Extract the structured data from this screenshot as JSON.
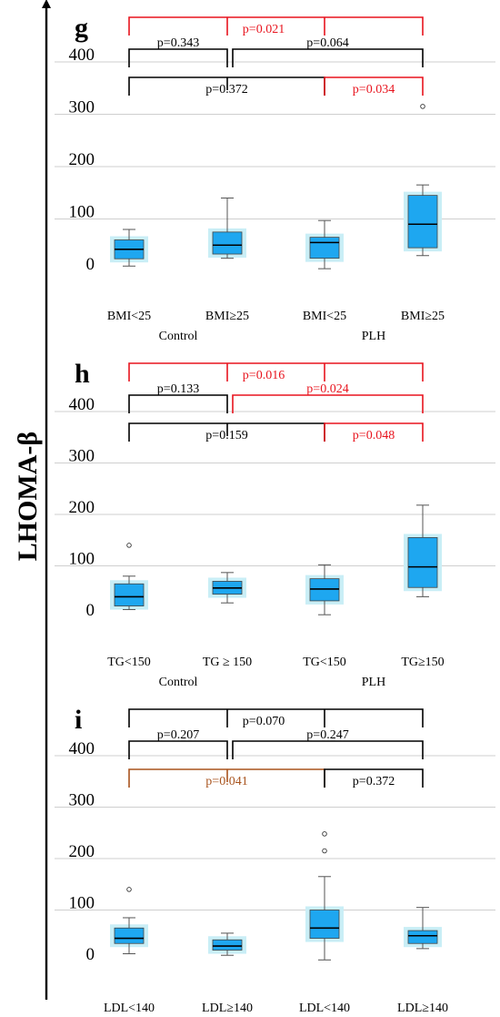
{
  "figure": {
    "ylabel": "LHOMA-β",
    "colors": {
      "box": "#1ea7f0",
      "halo": "#c9eef6",
      "black": "#000000",
      "red": "#e8141e",
      "brown": "#a8531d",
      "grid": "#bfbfbf"
    }
  },
  "chart_data": [
    {
      "type": "box",
      "panel": "g",
      "y_ticks": [
        0,
        100,
        200,
        300,
        400
      ],
      "ylim": [
        0,
        400
      ],
      "grid": true,
      "categories": [
        "BMI<25",
        "BMI≥25",
        "BMI<25",
        "BMI≥25"
      ],
      "groups": [
        {
          "label": "Control",
          "span": [
            0,
            1
          ]
        },
        {
          "label": "PLH",
          "span": [
            2,
            3
          ]
        }
      ],
      "boxes": [
        {
          "min": 10,
          "q1": 24,
          "median": 42,
          "q3": 60,
          "max": 80,
          "outliers": []
        },
        {
          "min": 25,
          "q1": 33,
          "median": 50,
          "q3": 75,
          "max": 140,
          "outliers": []
        },
        {
          "min": 5,
          "q1": 25,
          "median": 55,
          "q3": 65,
          "max": 97,
          "outliers": []
        },
        {
          "min": 30,
          "q1": 45,
          "median": 90,
          "q3": 145,
          "max": 165,
          "outliers": [
            315
          ]
        }
      ],
      "comparisons": [
        {
          "from": 0,
          "to": 3,
          "label": "p=0.021",
          "color": "red"
        },
        {
          "from": 0,
          "to": 1,
          "label": "p=0.343",
          "color": "black"
        },
        {
          "from": 1,
          "to": 3,
          "label": "p=0.064",
          "color": "black"
        },
        {
          "from": 0,
          "to": 2,
          "label": "p=0.372",
          "color": "black"
        },
        {
          "from": 2,
          "to": 3,
          "label": "p=0.034",
          "color": "red"
        }
      ]
    },
    {
      "type": "box",
      "panel": "h",
      "y_ticks": [
        0,
        100,
        200,
        300,
        400
      ],
      "ylim": [
        0,
        400
      ],
      "grid": true,
      "categories": [
        "TG<150",
        "TG ≥ 150",
        "TG<150",
        "TG≥150"
      ],
      "groups": [
        {
          "label": "Control",
          "span": [
            0,
            1
          ]
        },
        {
          "label": "PLH",
          "span": [
            2,
            3
          ]
        }
      ],
      "boxes": [
        {
          "min": 15,
          "q1": 22,
          "median": 40,
          "q3": 65,
          "max": 80,
          "outliers": [
            140
          ]
        },
        {
          "min": 28,
          "q1": 45,
          "median": 57,
          "q3": 70,
          "max": 87,
          "outliers": []
        },
        {
          "min": 5,
          "q1": 32,
          "median": 55,
          "q3": 75,
          "max": 102,
          "outliers": []
        },
        {
          "min": 40,
          "q1": 58,
          "median": 98,
          "q3": 155,
          "max": 218,
          "outliers": []
        }
      ],
      "comparisons": [
        {
          "from": 0,
          "to": 3,
          "label": "p=0.016",
          "color": "red"
        },
        {
          "from": 0,
          "to": 1,
          "label": "p=0.133",
          "color": "black"
        },
        {
          "from": 1,
          "to": 3,
          "label": "p=0.024",
          "color": "red"
        },
        {
          "from": 0,
          "to": 2,
          "label": "p=0.159",
          "color": "black"
        },
        {
          "from": 2,
          "to": 3,
          "label": "p=0.048",
          "color": "red"
        }
      ]
    },
    {
      "type": "box",
      "panel": "i",
      "y_ticks": [
        0,
        100,
        200,
        300,
        400
      ],
      "ylim": [
        0,
        400
      ],
      "grid": true,
      "categories": [
        "LDL<140",
        "LDL≥140",
        "LDL<140",
        "LDL≥140"
      ],
      "groups": [
        {
          "label": "Control",
          "span": [
            0,
            1
          ]
        },
        {
          "label": "PLH",
          "span": [
            2,
            3
          ]
        }
      ],
      "boxes": [
        {
          "min": 15,
          "q1": 35,
          "median": 45,
          "q3": 65,
          "max": 85,
          "outliers": [
            140
          ]
        },
        {
          "min": 12,
          "q1": 22,
          "median": 30,
          "q3": 42,
          "max": 55,
          "outliers": []
        },
        {
          "min": 3,
          "q1": 45,
          "median": 65,
          "q3": 100,
          "max": 165,
          "outliers": [
            215,
            248
          ]
        },
        {
          "min": 25,
          "q1": 35,
          "median": 50,
          "q3": 60,
          "max": 105,
          "outliers": []
        }
      ],
      "comparisons": [
        {
          "from": 0,
          "to": 3,
          "label": "p=0.070",
          "color": "black"
        },
        {
          "from": 0,
          "to": 1,
          "label": "p=0.207",
          "color": "black"
        },
        {
          "from": 1,
          "to": 3,
          "label": "p=0.247",
          "color": "black"
        },
        {
          "from": 0,
          "to": 2,
          "label": "p=0.041",
          "color": "brown"
        },
        {
          "from": 2,
          "to": 3,
          "label": "p=0.372",
          "color": "black"
        }
      ]
    }
  ]
}
